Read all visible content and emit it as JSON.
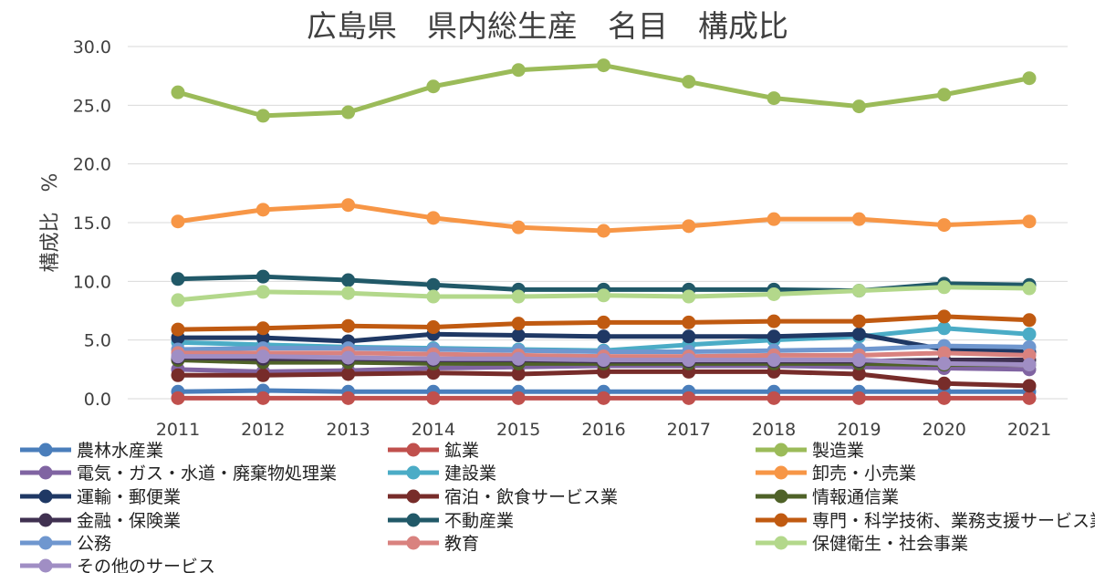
{
  "chart_data": {
    "type": "line",
    "title": "広島県　県内総生産　名目　構成比",
    "xlabel": "",
    "ylabel": "構成比　%",
    "ylim": [
      0,
      30
    ],
    "yticks": [
      "0.0",
      "5.0",
      "10.0",
      "15.0",
      "20.0",
      "25.0",
      "30.0"
    ],
    "categories": [
      "2011",
      "2012",
      "2013",
      "2014",
      "2015",
      "2016",
      "2017",
      "2018",
      "2019",
      "2020",
      "2021"
    ],
    "legend_position": "bottom",
    "series": [
      {
        "name": "農林水産業",
        "color": "#4a7ebb",
        "values": [
          0.6,
          0.7,
          0.6,
          0.6,
          0.6,
          0.6,
          0.6,
          0.6,
          0.6,
          0.6,
          0.6
        ]
      },
      {
        "name": "鉱業",
        "color": "#c0504d",
        "values": [
          0.05,
          0.05,
          0.05,
          0.05,
          0.05,
          0.05,
          0.05,
          0.05,
          0.05,
          0.05,
          0.05
        ]
      },
      {
        "name": "製造業",
        "color": "#9bbb59",
        "values": [
          26.1,
          24.1,
          24.4,
          26.6,
          28.0,
          28.4,
          27.0,
          25.6,
          24.9,
          25.9,
          27.3
        ]
      },
      {
        "name": "電気・ガス・水道・廃棄物処理業",
        "color": "#8064a2",
        "values": [
          2.5,
          2.3,
          2.4,
          2.6,
          2.7,
          2.8,
          2.8,
          2.8,
          2.7,
          2.6,
          2.5
        ]
      },
      {
        "name": "建設業",
        "color": "#4bacc6",
        "values": [
          4.8,
          4.6,
          4.4,
          4.3,
          4.2,
          4.1,
          4.6,
          5.0,
          5.3,
          6.0,
          5.5
        ]
      },
      {
        "name": "卸売・小売業",
        "color": "#f79646",
        "values": [
          15.1,
          16.1,
          16.5,
          15.4,
          14.6,
          14.3,
          14.7,
          15.3,
          15.3,
          14.8,
          15.1
        ]
      },
      {
        "name": "運輸・郵便業",
        "color": "#1f3864",
        "values": [
          5.2,
          5.2,
          4.9,
          5.5,
          5.4,
          5.3,
          5.3,
          5.3,
          5.5,
          4.2,
          4.0
        ]
      },
      {
        "name": "宿泊・飲食サービス業",
        "color": "#772c2a",
        "values": [
          2.0,
          2.0,
          2.1,
          2.2,
          2.1,
          2.3,
          2.3,
          2.3,
          2.1,
          1.3,
          1.1
        ]
      },
      {
        "name": "情報通信業",
        "color": "#4f6228",
        "values": [
          3.3,
          3.1,
          3.1,
          3.0,
          3.0,
          3.0,
          3.0,
          3.0,
          3.0,
          2.9,
          2.9
        ]
      },
      {
        "name": "金融・保険業",
        "color": "#403151",
        "values": [
          3.5,
          3.4,
          3.4,
          3.3,
          3.3,
          3.2,
          3.2,
          3.2,
          3.2,
          3.3,
          3.3
        ]
      },
      {
        "name": "不動産業",
        "color": "#215968",
        "values": [
          10.2,
          10.4,
          10.1,
          9.7,
          9.3,
          9.3,
          9.3,
          9.3,
          9.2,
          9.8,
          9.7
        ]
      },
      {
        "name": "専門・科学技術、業務支援サービス業",
        "color": "#c05a11",
        "values": [
          5.9,
          6.0,
          6.2,
          6.1,
          6.4,
          6.5,
          6.5,
          6.6,
          6.6,
          7.0,
          6.7
        ]
      },
      {
        "name": "公務",
        "color": "#6f97cf",
        "values": [
          4.2,
          4.3,
          4.3,
          4.2,
          4.1,
          4.0,
          4.0,
          4.1,
          4.2,
          4.5,
          4.4
        ]
      },
      {
        "name": "教育",
        "color": "#d9827f",
        "values": [
          3.9,
          3.9,
          3.9,
          3.8,
          3.7,
          3.6,
          3.6,
          3.7,
          3.7,
          3.9,
          3.7
        ]
      },
      {
        "name": "保健衛生・社会事業",
        "color": "#b3d88b",
        "values": [
          8.4,
          9.1,
          9.0,
          8.7,
          8.7,
          8.8,
          8.7,
          8.9,
          9.2,
          9.5,
          9.4
        ]
      },
      {
        "name": "その他のサービス",
        "color": "#a08ec4",
        "values": [
          3.6,
          3.6,
          3.5,
          3.4,
          3.4,
          3.3,
          3.3,
          3.3,
          3.3,
          3.0,
          2.9
        ]
      }
    ]
  }
}
